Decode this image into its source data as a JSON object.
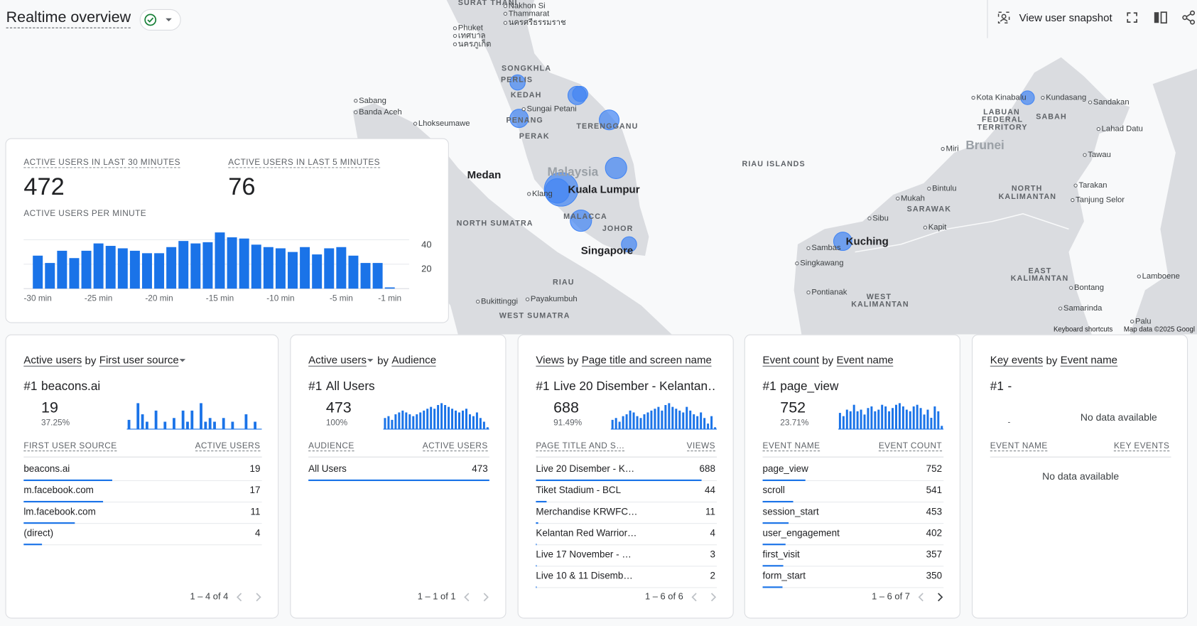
{
  "header": {
    "title": "Realtime overview"
  },
  "toolbar": {
    "snapshot": "View user snapshot"
  },
  "map": {
    "labels": [
      "SURAT THANI",
      "Nakhon Si",
      "Thammarat",
      "นครศรีธรรมราช",
      "Phuket",
      "เทศบาล",
      "นครภูเก็ต",
      "SONGKHLA",
      "PERLIS",
      "KEDAH",
      "Sungai Petani",
      "PENANG",
      "TERENGGANU",
      "PERAK",
      "Malaysia",
      "Kuala Lumpur",
      "Klang",
      "MALACCA",
      "JOHOR",
      "Singapore",
      "RIAU",
      "NORTH SUMATRA",
      "Medan",
      "Sabang",
      "Banda Aceh",
      "Lhokseumawe",
      "Bukittinggi",
      "Payakumbuh",
      "WEST SUMATRA",
      "RIAU ISLANDS",
      "Kota Kinabalu",
      "Kundasang",
      "Sandakan",
      "SABAH",
      "LABUAN",
      "FEDERAL",
      "TERRITORY",
      "Miri",
      "Brunei",
      "Lahad Datu",
      "Tawau",
      "Bintulu",
      "Mukah",
      "SARAWAK",
      "NORTH",
      "KALIMANTAN",
      "Tarakan",
      "Tanjung Selor",
      "Sibu",
      "Kapit",
      "Kuching",
      "Sambas",
      "Singkawang",
      "EAST",
      "KALIMANTAN",
      "Lamboene",
      "Bontang",
      "Pontianak",
      "WEST",
      "KALIMANTAN",
      "Samarinda",
      "Palu"
    ],
    "footer": [
      "Keyboard shortcuts",
      "Map data ©2025 Googl"
    ]
  },
  "summary": {
    "metrics": [
      {
        "label": "ACTIVE USERS IN LAST 30 MINUTES",
        "value": 472
      },
      {
        "label": "ACTIVE USERS IN LAST 5 MINUTES",
        "value": 76
      }
    ]
  },
  "chart_data": {
    "type": "bar",
    "title": "ACTIVE USERS PER MINUTE",
    "categories": [
      "-30 min",
      null,
      null,
      null,
      null,
      "-25 min",
      null,
      null,
      null,
      null,
      "-20 min",
      null,
      null,
      null,
      null,
      "-15 min",
      null,
      null,
      null,
      null,
      "-10 min",
      null,
      null,
      null,
      null,
      "-5 min",
      null,
      null,
      null,
      "-1 min"
    ],
    "values": [
      27,
      21,
      31,
      25,
      31,
      37,
      35,
      33,
      31,
      29,
      29,
      34,
      39,
      37,
      38,
      46,
      42,
      41,
      36,
      34,
      33,
      30,
      34,
      28,
      33,
      34,
      27,
      21,
      21,
      1
    ],
    "color": "#1a73e8",
    "ylim": [
      0,
      50
    ],
    "yticks": [
      20,
      40
    ],
    "grid": true
  },
  "cards": [
    {
      "title": {
        "metric": "Active users",
        "by": "by",
        "dimension": "First user source"
      },
      "dropdown": "dimension",
      "top": {
        "rank": "#1",
        "name": "beacons.ai",
        "value": 19,
        "share": 37.25,
        "share_label": "37.25%"
      },
      "spark": [
        5,
        0,
        14,
        8,
        4,
        0,
        10,
        0,
        4,
        0,
        6,
        0,
        10,
        4,
        10,
        0,
        14,
        4,
        6,
        4,
        0,
        6,
        0,
        4,
        0,
        0,
        8,
        0,
        4,
        0
      ],
      "columns": [
        "FIRST USER SOURCE",
        "ACTIVE USERS"
      ],
      "rows": [
        {
          "name": "beacons.ai",
          "value": 19
        },
        {
          "name": "m.facebook.com",
          "value": 17
        },
        {
          "name": "lm.facebook.com",
          "value": 11
        },
        {
          "name": "(direct)",
          "value": 4
        }
      ],
      "pagination": "1 – 4 of 4",
      "next_enabled": false
    },
    {
      "title": {
        "metric": "Active users",
        "by": "by",
        "dimension": "Audience"
      },
      "dropdown": "metric",
      "top": {
        "rank": "#1",
        "name": "All Users",
        "value": 473,
        "share": 100,
        "share_label": "100%"
      },
      "spark": [
        12,
        14,
        10,
        16,
        18,
        20,
        18,
        16,
        14,
        16,
        18,
        20,
        22,
        24,
        22,
        26,
        28,
        26,
        24,
        22,
        20,
        18,
        20,
        22,
        16,
        14,
        18,
        12,
        8,
        2
      ],
      "columns": [
        "AUDIENCE",
        "ACTIVE USERS"
      ],
      "rows": [
        {
          "name": "All Users",
          "value": 473
        }
      ],
      "pagination": "1 – 1 of 1",
      "next_enabled": false
    },
    {
      "title": {
        "metric": "Views",
        "by": "by",
        "dimension": "Page title and screen name"
      },
      "dropdown": "none",
      "top": {
        "rank": "#1",
        "name": "Live 20 Disember - Kelantan…",
        "value": 688,
        "share": 91.49,
        "share_label": "91.49%"
      },
      "spark": [
        10,
        12,
        8,
        14,
        16,
        20,
        18,
        14,
        12,
        16,
        18,
        20,
        22,
        24,
        20,
        26,
        28,
        24,
        22,
        20,
        18,
        24,
        20,
        16,
        14,
        18,
        12,
        6,
        14,
        2
      ],
      "columns": [
        "PAGE TITLE AND S…",
        "VIEWS"
      ],
      "rows": [
        {
          "name": "Live 20 Disember - K…",
          "value": 688
        },
        {
          "name": "Tiket Stadium - BCL",
          "value": 44
        },
        {
          "name": "Merchandise KRWFC…",
          "value": 11
        },
        {
          "name": "Kelantan Red Warrior…",
          "value": 4
        },
        {
          "name": "Live 17 November - …",
          "value": 3
        },
        {
          "name": "Live 10 & 11 Disemb…",
          "value": 2
        }
      ],
      "pagination": "1 – 6 of 6",
      "next_enabled": false
    },
    {
      "title": {
        "metric": "Event count",
        "by": "by",
        "dimension": "Event name"
      },
      "dropdown": "none",
      "top": {
        "rank": "#1",
        "name": "page_view",
        "value": 752,
        "share": 23.71,
        "share_label": "23.71%"
      },
      "spark": [
        20,
        16,
        24,
        22,
        30,
        22,
        24,
        18,
        26,
        28,
        22,
        24,
        30,
        28,
        22,
        26,
        30,
        32,
        28,
        24,
        22,
        28,
        30,
        26,
        18,
        24,
        14,
        28,
        22,
        4
      ],
      "columns": [
        "EVENT NAME",
        "EVENT COUNT"
      ],
      "rows": [
        {
          "name": "page_view",
          "value": 752
        },
        {
          "name": "scroll",
          "value": 541
        },
        {
          "name": "session_start",
          "value": 453
        },
        {
          "name": "user_engagement",
          "value": 402
        },
        {
          "name": "first_visit",
          "value": 357
        },
        {
          "name": "form_start",
          "value": 350
        }
      ],
      "pagination": "1 – 6 of 7",
      "next_enabled": true
    },
    {
      "title": {
        "metric": "Key events",
        "by": "by",
        "dimension": "Event name"
      },
      "dropdown": "none",
      "top": {
        "rank": "#1",
        "name": "-",
        "value": "-",
        "empty": "No data available"
      },
      "columns": [
        "EVENT NAME",
        "KEY EVENTS"
      ],
      "rows": [],
      "empty_table": "No data available"
    }
  ]
}
